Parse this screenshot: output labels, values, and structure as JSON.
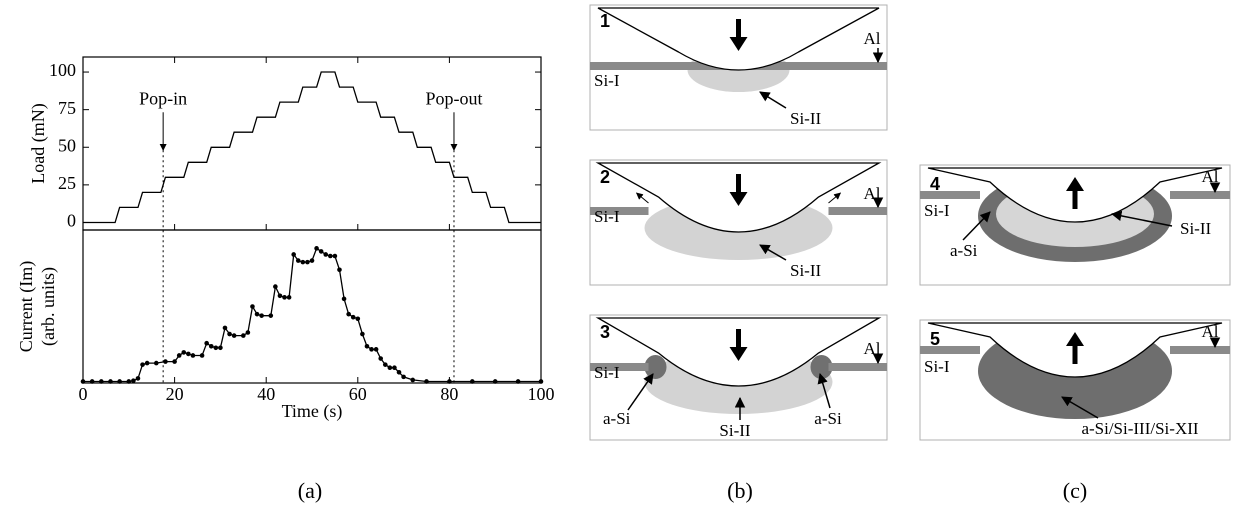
{
  "chart_data": [
    {
      "type": "line",
      "ylabel": "Load (mN)",
      "x": [
        0,
        7,
        8,
        12,
        13,
        17,
        18,
        22,
        23,
        27,
        28,
        32,
        33,
        37,
        38,
        42,
        43,
        47,
        48,
        51,
        52,
        55,
        56,
        59,
        60,
        64,
        65,
        68,
        69,
        72,
        73,
        76,
        77,
        80,
        81,
        84,
        85,
        88,
        89,
        92,
        93,
        100
      ],
      "values": [
        0,
        0,
        10,
        10,
        20,
        20,
        30,
        30,
        40,
        40,
        50,
        50,
        60,
        60,
        70,
        70,
        80,
        80,
        90,
        90,
        100,
        100,
        90,
        90,
        80,
        80,
        70,
        70,
        60,
        60,
        50,
        50,
        40,
        40,
        30,
        30,
        20,
        20,
        10,
        10,
        0,
        0
      ],
      "xlim": [
        0,
        100
      ],
      "ylim": [
        -5,
        110
      ],
      "yticks": [
        0,
        25,
        50,
        75,
        100
      ],
      "color": "#000000",
      "annotations": [
        {
          "text": "Pop-in",
          "x": 17.5,
          "y": 48
        },
        {
          "text": "Pop-out",
          "x": 81,
          "y": 48
        }
      ]
    },
    {
      "type": "line",
      "ylabel": "Current (Im)",
      "ylabel2": "(arb. units)",
      "xlabel": "Time (s)",
      "x": [
        0,
        2,
        4,
        6,
        8,
        10,
        11,
        12,
        13,
        14,
        16,
        18,
        20,
        21,
        22,
        23,
        24,
        26,
        27,
        28,
        29,
        30,
        31,
        32,
        33,
        35,
        36,
        37,
        38,
        39,
        41,
        42,
        43,
        44,
        45,
        46,
        47,
        48,
        49,
        50,
        51,
        52,
        53,
        54,
        55,
        56,
        57,
        58,
        59,
        60,
        61,
        62,
        63,
        64,
        65,
        66,
        67,
        68,
        69,
        70,
        72,
        75,
        80,
        85,
        90,
        95,
        100
      ],
      "values": [
        0.1,
        0.1,
        0.1,
        0.1,
        0.1,
        0.1,
        0.15,
        0.3,
        1.2,
        1.3,
        1.3,
        1.4,
        1.4,
        1.8,
        2.0,
        1.9,
        1.8,
        1.8,
        2.6,
        2.4,
        2.3,
        2.3,
        3.6,
        3.2,
        3.1,
        3.1,
        3.3,
        5.0,
        4.5,
        4.4,
        4.4,
        6.3,
        5.7,
        5.6,
        5.6,
        8.4,
        8.0,
        7.9,
        7.9,
        8.0,
        8.8,
        8.6,
        8.4,
        8.3,
        8.3,
        7.4,
        5.5,
        4.5,
        4.3,
        4.2,
        3.2,
        2.4,
        2.2,
        2.2,
        1.6,
        1.2,
        1.0,
        1.0,
        0.7,
        0.4,
        0.2,
        0.1,
        0.1,
        0.1,
        0.1,
        0.1,
        0.1
      ],
      "xlim": [
        0,
        100
      ],
      "ylim": [
        0,
        10
      ],
      "xticks": [
        0,
        20,
        40,
        60,
        80,
        100
      ],
      "color": "#000000",
      "markers": true
    }
  ],
  "diagrams": {
    "panels": [
      {
        "number": "1",
        "labels": [
          "Al",
          "Si-I",
          "Si-II"
        ]
      },
      {
        "number": "2",
        "labels": [
          "Al",
          "Si-I",
          "Si-II"
        ]
      },
      {
        "number": "3",
        "labels": [
          "Al",
          "Si-I",
          "a-Si",
          "Si-II",
          "a-Si"
        ]
      },
      {
        "number": "4",
        "labels": [
          "Al",
          "Si-I",
          "a-Si",
          "Si-II"
        ]
      },
      {
        "number": "5",
        "labels": [
          "Al",
          "Si-I",
          "a-Si/Si-III/Si-XII"
        ]
      }
    ]
  },
  "captions": [
    "(a)",
    "(b)",
    "(c)"
  ]
}
